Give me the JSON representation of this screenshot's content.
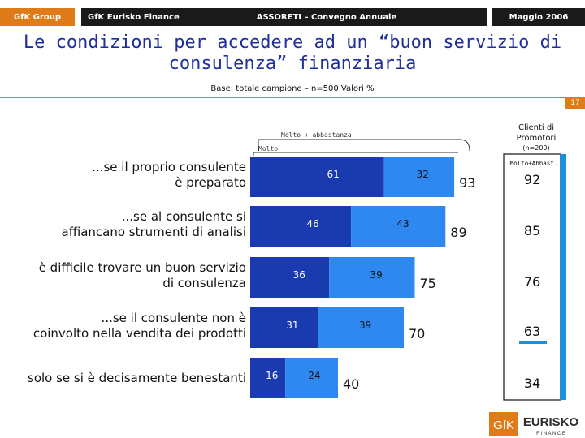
{
  "header": {
    "brand": "GfK Group",
    "division": "GfK Eurisko Finance",
    "event": "ASSORETI – Convegno Annuale",
    "date": "Maggio 2006"
  },
  "slide": {
    "title_line1": "Le condizioni per accedere ad un “buon servizio di",
    "title_line2": "consulenza” finanziaria",
    "base": "Base: totale campione – n=500 Valori %",
    "page_number": "17"
  },
  "logo": {
    "left": "GfK",
    "right": "EURISKO",
    "sub": "F I N A N C E"
  },
  "colors": {
    "dark": "#1a3bb0",
    "light": "#2f87f0",
    "orange": "#e07b1a",
    "title": "#1f2f9c",
    "teal": "#1e8fd8"
  },
  "chart_data": {
    "type": "bar",
    "stacked": true,
    "orientation": "horizontal",
    "legend": [
      "Molto + abbastanza",
      "Molto"
    ],
    "categories": [
      [
        "...se il proprio consulente",
        "è preparato"
      ],
      [
        "...se al consulente si",
        "affiancano strumenti di analisi"
      ],
      [
        "è difficile trovare un buon servizio",
        "di consulenza"
      ],
      [
        "...se il consulente non è",
        "coinvolto nella vendita dei prodotti"
      ],
      [
        "solo se si è decisamente benestanti"
      ]
    ],
    "series": [
      {
        "name": "Molto",
        "values": [
          61,
          46,
          36,
          31,
          16
        ]
      },
      {
        "name": "Abbastanza",
        "values": [
          32,
          43,
          39,
          39,
          24
        ]
      }
    ],
    "totals": [
      93,
      89,
      75,
      70,
      40
    ],
    "promotori": {
      "title_line1": "Clienti di",
      "title_line2": "Promotori",
      "sample": "(n=200)",
      "column_label": "Molto+Abbast.",
      "values": [
        92,
        85,
        76,
        63,
        34
      ]
    },
    "xlim": [
      0,
      100
    ]
  }
}
